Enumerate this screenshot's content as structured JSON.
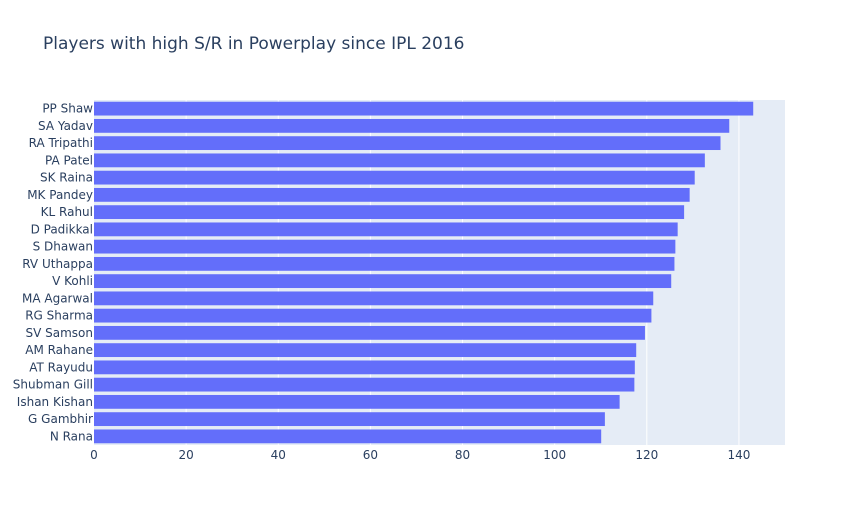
{
  "chart_data": {
    "type": "bar",
    "orientation": "horizontal",
    "title": "Players with high S/R in Powerplay since IPL 2016",
    "xlabel": "",
    "ylabel": "",
    "xlim": [
      0,
      150
    ],
    "xticks": [
      0,
      20,
      40,
      60,
      80,
      100,
      120,
      140
    ],
    "grid": true,
    "legend": "none",
    "colors": {
      "bar": "#636efa",
      "plot_bg": "#e5ecf6",
      "grid": "#ffffff",
      "text": "#2a3f5f"
    },
    "categories": [
      "PP Shaw",
      "SA Yadav",
      "RA Tripathi",
      "PA Patel",
      "SK Raina",
      "MK Pandey",
      "KL Rahul",
      "D Padikkal",
      "S Dhawan",
      "RV Uthappa",
      "V Kohli",
      "MA Agarwal",
      "RG Sharma",
      "SV Samson",
      "AM Rahane",
      "AT Rayudu",
      "Shubman Gill",
      "Ishan Kishan",
      "G Gambhir",
      "N Rana"
    ],
    "values": [
      143.1,
      137.9,
      136.0,
      132.6,
      130.4,
      129.3,
      128.1,
      126.7,
      126.2,
      126.0,
      125.3,
      121.4,
      121.0,
      119.6,
      117.7,
      117.4,
      117.3,
      114.1,
      110.9,
      110.1
    ]
  }
}
